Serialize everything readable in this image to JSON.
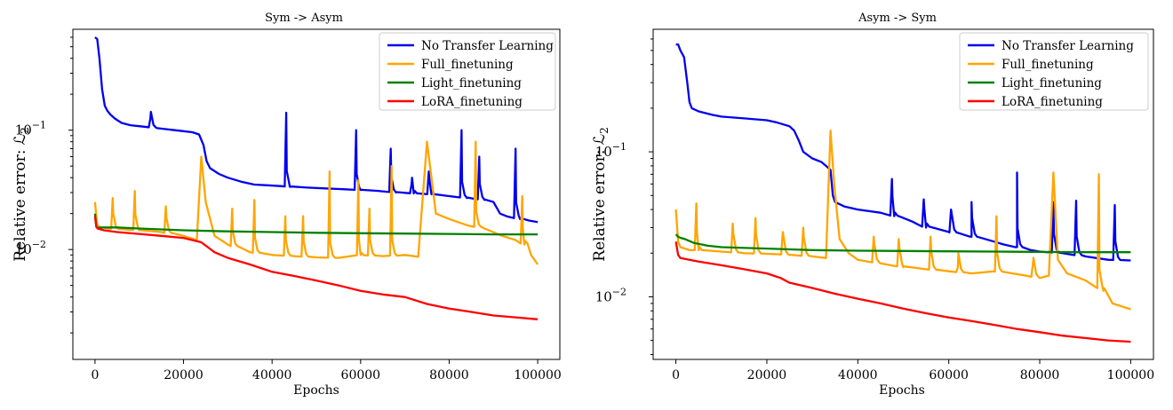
{
  "chart_data": [
    {
      "type": "line",
      "title": "Sym -> Asym",
      "xlabel": "Epochs",
      "ylabel": "Relative error: ℒ",
      "ylabel_sub": "2",
      "yscale": "log",
      "xlim": [
        -5000,
        105000
      ],
      "ylim": [
        0.0012,
        0.7
      ],
      "xticks": [
        0,
        20000,
        40000,
        60000,
        80000,
        100000
      ],
      "xtick_labels": [
        "0",
        "20000",
        "40000",
        "60000",
        "80000",
        "100000"
      ],
      "ytick_labels": [
        {
          "value": 0.1,
          "base": "10",
          "exp": "−1"
        },
        {
          "value": 0.01,
          "base": "10",
          "exp": "−2"
        }
      ],
      "legend_position": "top-right",
      "series": [
        {
          "name": "No Transfer Learning",
          "color": "#0000ee",
          "x": [
            0,
            500,
            1000,
            1600,
            2200,
            2800,
            3500,
            4500,
            6000,
            8000,
            10000,
            12000,
            14000,
            16000,
            18000,
            20000,
            22000,
            23500,
            24500,
            25200,
            26000,
            28000,
            30000,
            33000,
            36000,
            39000,
            42000,
            44000,
            48000,
            52000,
            56000,
            60000,
            64000,
            68000,
            72000,
            76000,
            80000,
            84000,
            88000,
            90000,
            91500,
            93000,
            96000,
            98000,
            100000
          ],
          "y": [
            0.6,
            0.58,
            0.4,
            0.22,
            0.16,
            0.145,
            0.135,
            0.125,
            0.115,
            0.11,
            0.108,
            0.106,
            0.104,
            0.102,
            0.1,
            0.098,
            0.096,
            0.092,
            0.075,
            0.055,
            0.048,
            0.043,
            0.04,
            0.037,
            0.035,
            0.0345,
            0.034,
            0.0335,
            0.033,
            0.0325,
            0.032,
            0.0315,
            0.031,
            0.03,
            0.0295,
            0.029,
            0.028,
            0.027,
            0.026,
            0.025,
            0.02,
            0.019,
            0.018,
            0.0175,
            0.017
          ],
          "spikes": [
            [
              12500,
              0.125
            ],
            [
              43200,
              0.14
            ],
            [
              59000,
              0.1
            ],
            [
              66800,
              0.07
            ],
            [
              71500,
              0.035
            ],
            [
              75400,
              0.045
            ],
            [
              82800,
              0.1
            ],
            [
              86800,
              0.06
            ],
            [
              95000,
              0.07
            ]
          ]
        },
        {
          "name": "Full_finetuning",
          "color": "#ffa500",
          "x": [
            0,
            500,
            1000,
            3000,
            6000,
            10000,
            15000,
            20000,
            23000,
            24000,
            25000,
            27000,
            30000,
            35000,
            40000,
            45000,
            50000,
            55000,
            60000,
            65000,
            70000,
            73000,
            75000,
            77000,
            80000,
            84000,
            88000,
            92000,
            95000,
            97000,
            98500,
            100000
          ],
          "y": [
            0.025,
            0.016,
            0.0155,
            0.015,
            0.0148,
            0.0145,
            0.014,
            0.013,
            0.012,
            0.06,
            0.025,
            0.013,
            0.011,
            0.0095,
            0.009,
            0.0088,
            0.0086,
            0.0085,
            0.009,
            0.0088,
            0.009,
            0.0087,
            0.08,
            0.02,
            0.018,
            0.016,
            0.015,
            0.013,
            0.012,
            0.011,
            0.009,
            0.0075
          ],
          "spikes": [
            [
              4000,
              0.027
            ],
            [
              9000,
              0.031
            ],
            [
              16000,
              0.023
            ],
            [
              31000,
              0.022
            ],
            [
              36000,
              0.026
            ],
            [
              43000,
              0.019
            ],
            [
              47000,
              0.019
            ],
            [
              53000,
              0.045
            ],
            [
              59500,
              0.038
            ],
            [
              62000,
              0.022
            ],
            [
              67000,
              0.05
            ],
            [
              86000,
              0.08
            ],
            [
              96500,
              0.028
            ]
          ]
        },
        {
          "name": "Light_finetuning",
          "color": "#008000",
          "x": [
            0,
            300,
            600,
            2000,
            5000,
            10000,
            20000,
            30000,
            40000,
            50000,
            60000,
            70000,
            80000,
            90000,
            100000
          ],
          "y": [
            0.02,
            0.0155,
            0.0152,
            0.0153,
            0.0153,
            0.015,
            0.0145,
            0.0142,
            0.014,
            0.0138,
            0.0137,
            0.0136,
            0.0135,
            0.0134,
            0.0134
          ]
        },
        {
          "name": "LoRA_finetuning",
          "color": "#ff0000",
          "x": [
            0,
            300,
            600,
            2000,
            5000,
            10000,
            15000,
            20000,
            24000,
            27000,
            30000,
            35000,
            40000,
            45000,
            50000,
            55000,
            60000,
            65000,
            70000,
            75000,
            80000,
            85000,
            90000,
            95000,
            100000
          ],
          "y": [
            0.019,
            0.0155,
            0.015,
            0.0145,
            0.014,
            0.0135,
            0.013,
            0.0125,
            0.0115,
            0.0095,
            0.0085,
            0.0075,
            0.0065,
            0.006,
            0.0055,
            0.005,
            0.0045,
            0.0042,
            0.004,
            0.0035,
            0.0032,
            0.003,
            0.0028,
            0.0027,
            0.0026
          ]
        }
      ]
    },
    {
      "type": "line",
      "title": "Asym -> Sym",
      "xlabel": "Epochs",
      "ylabel": "Relative error: ℒ",
      "ylabel_sub": "2",
      "yscale": "log",
      "xlim": [
        -5000,
        105000
      ],
      "ylim": [
        0.0037,
        0.7
      ],
      "xticks": [
        0,
        20000,
        40000,
        60000,
        80000,
        100000
      ],
      "xtick_labels": [
        "0",
        "20000",
        "40000",
        "60000",
        "80000",
        "100000"
      ],
      "ytick_labels": [
        {
          "value": 0.1,
          "base": "10",
          "exp": "−1"
        },
        {
          "value": 0.01,
          "base": "10",
          "exp": "−2"
        }
      ],
      "legend_position": "top-right",
      "series": [
        {
          "name": "No Transfer Learning",
          "color": "#0000ee",
          "x": [
            0,
            500,
            1000,
            1800,
            2500,
            3000,
            3500,
            5000,
            8000,
            10000,
            15000,
            20000,
            22000,
            25000,
            26000,
            27000,
            28000,
            30000,
            32000,
            33000,
            34000,
            34500,
            35000,
            37000,
            40000,
            45000,
            48000,
            52000,
            55000,
            60000,
            65000,
            70000,
            72000,
            75000,
            78000,
            80000,
            85000,
            90000,
            95000,
            100000
          ],
          "y": [
            0.55,
            0.55,
            0.5,
            0.45,
            0.3,
            0.22,
            0.2,
            0.19,
            0.18,
            0.175,
            0.17,
            0.165,
            0.16,
            0.15,
            0.14,
            0.12,
            0.1,
            0.09,
            0.085,
            0.08,
            0.075,
            0.05,
            0.045,
            0.042,
            0.04,
            0.038,
            0.036,
            0.033,
            0.03,
            0.028,
            0.026,
            0.024,
            0.023,
            0.022,
            0.021,
            0.0205,
            0.02,
            0.019,
            0.018,
            0.0178
          ],
          "spikes": [
            [
              47500,
              0.065
            ],
            [
              54500,
              0.047
            ],
            [
              60500,
              0.04
            ],
            [
              65000,
              0.045
            ],
            [
              75000,
              0.072
            ],
            [
              83000,
              0.045
            ],
            [
              88000,
              0.046
            ],
            [
              96500,
              0.043
            ]
          ]
        },
        {
          "name": "Full_finetuning",
          "color": "#ffa500",
          "x": [
            0,
            500,
            1000,
            3000,
            5000,
            10000,
            15000,
            20000,
            25000,
            30000,
            33000,
            34000,
            34800,
            36000,
            38000,
            40000,
            45000,
            50000,
            55000,
            60000,
            65000,
            70000,
            74000,
            77000,
            80000,
            82000,
            83000,
            84000,
            86000,
            90000,
            94000,
            96000,
            100000
          ],
          "y": [
            0.04,
            0.024,
            0.022,
            0.021,
            0.021,
            0.0205,
            0.02,
            0.0198,
            0.0195,
            0.019,
            0.0185,
            0.14,
            0.06,
            0.025,
            0.02,
            0.018,
            0.017,
            0.016,
            0.0155,
            0.015,
            0.0145,
            0.015,
            0.0145,
            0.014,
            0.0135,
            0.014,
            0.072,
            0.018,
            0.0145,
            0.013,
            0.011,
            0.009,
            0.0082
          ],
          "spikes": [
            [
              4500,
              0.044
            ],
            [
              12500,
              0.032
            ],
            [
              17500,
              0.035
            ],
            [
              23500,
              0.028
            ],
            [
              28000,
              0.03
            ],
            [
              43500,
              0.026
            ],
            [
              49000,
              0.025
            ],
            [
              56000,
              0.026
            ],
            [
              62000,
              0.016
            ],
            [
              70500,
              0.036
            ],
            [
              78500,
              0.017
            ],
            [
              93000,
              0.07
            ]
          ]
        },
        {
          "name": "Light_finetuning",
          "color": "#008000",
          "x": [
            0,
            500,
            1000,
            2000,
            4000,
            7000,
            10000,
            20000,
            30000,
            40000,
            50000,
            60000,
            70000,
            80000,
            90000,
            100000
          ],
          "y": [
            0.027,
            0.026,
            0.0255,
            0.025,
            0.0235,
            0.0225,
            0.022,
            0.0215,
            0.021,
            0.0208,
            0.0207,
            0.0206,
            0.0205,
            0.0204,
            0.0203,
            0.0203
          ]
        },
        {
          "name": "LoRA_finetuning",
          "color": "#ff0000",
          "x": [
            0,
            500,
            1000,
            3000,
            5000,
            10000,
            15000,
            20000,
            23000,
            25000,
            30000,
            35000,
            40000,
            45000,
            50000,
            55000,
            60000,
            65000,
            70000,
            75000,
            80000,
            85000,
            90000,
            95000,
            100000
          ],
          "y": [
            0.024,
            0.0195,
            0.0185,
            0.018,
            0.0175,
            0.0165,
            0.0155,
            0.0145,
            0.0135,
            0.0125,
            0.0115,
            0.0105,
            0.0097,
            0.009,
            0.0083,
            0.0077,
            0.0072,
            0.0068,
            0.0064,
            0.006,
            0.0057,
            0.0054,
            0.0052,
            0.005,
            0.0049
          ]
        }
      ]
    }
  ]
}
